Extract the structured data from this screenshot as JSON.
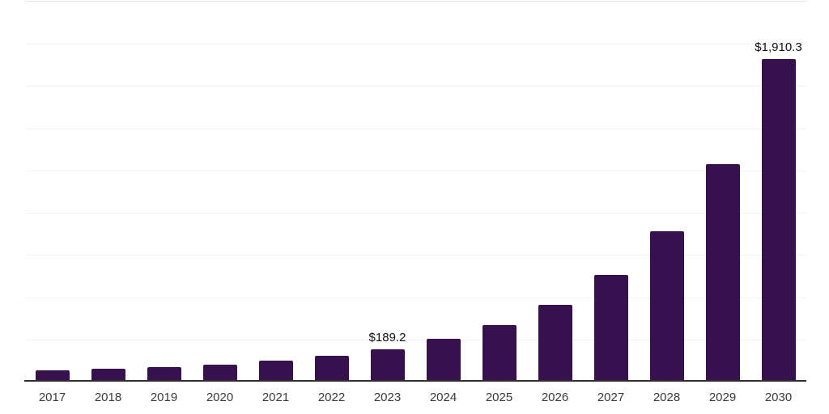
{
  "chart_data": {
    "type": "bar",
    "title": "",
    "xlabel": "",
    "ylabel": "",
    "categories": [
      "2017",
      "2018",
      "2019",
      "2020",
      "2021",
      "2022",
      "2023",
      "2024",
      "2025",
      "2026",
      "2027",
      "2028",
      "2029",
      "2030"
    ],
    "values": [
      65,
      75,
      85,
      100,
      124,
      153,
      189.2,
      252,
      334,
      453,
      630,
      890,
      1290,
      1910.3
    ],
    "data_labels": {
      "2023": "$189.2",
      "2030": "$1,910.3"
    },
    "ylim": [
      0,
      2250
    ],
    "gridline_interval": 250,
    "grid": true,
    "legend": "none",
    "colors": {
      "bar": "#36114e",
      "axis_line": "#2f2f2f",
      "gridline": "#f2f2f2",
      "tick_label": "#3a3a3a",
      "data_label": "#111111",
      "background": "#ffffff"
    }
  }
}
